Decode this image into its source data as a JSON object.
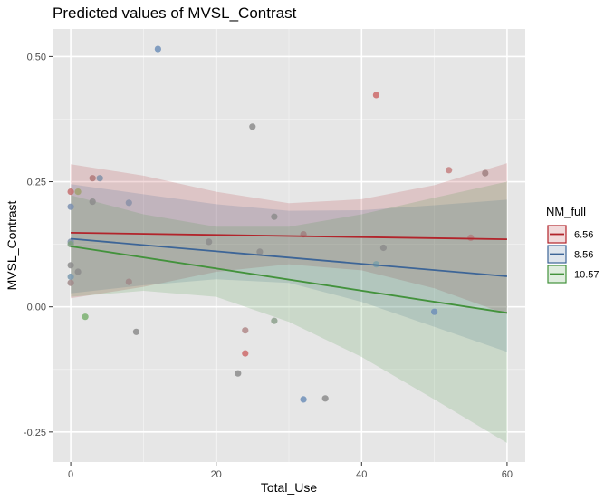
{
  "chart_data": {
    "type": "scatter",
    "title": "Predicted values of MVSL_Contrast",
    "xlabel": "Total_Use",
    "ylabel": "MVSL_Contrast",
    "xlim": [
      -2.5,
      62.5
    ],
    "ylim": [
      -0.31,
      0.555
    ],
    "x_ticks": [
      0,
      20,
      40,
      60
    ],
    "x_tick_labels": [
      "0",
      "20",
      "40",
      "60"
    ],
    "y_ticks": [
      -0.25,
      0,
      0.25,
      0.5
    ],
    "y_tick_labels": [
      "-0.25",
      "0.00",
      "0.25",
      "0.50"
    ],
    "grid": true,
    "legend": {
      "title": "NM_full",
      "position": "right",
      "entries": [
        "6.56",
        "8.56",
        "10.57"
      ]
    },
    "series": [
      {
        "name": "6.56",
        "color": "#b2242b",
        "line": [
          [
            0,
            0.148
          ],
          [
            60,
            0.135
          ]
        ],
        "band": [
          [
            0,
            0.285
          ],
          [
            10,
            0.262
          ],
          [
            20,
            0.23
          ],
          [
            30,
            0.207
          ],
          [
            40,
            0.215
          ],
          [
            50,
            0.243
          ],
          [
            60,
            0.287
          ]
        ],
        "band_low": [
          [
            0,
            0.017
          ],
          [
            10,
            0.04
          ],
          [
            20,
            0.07
          ],
          [
            30,
            0.085
          ],
          [
            40,
            0.073
          ],
          [
            50,
            0.037
          ],
          [
            60,
            -0.015
          ]
        ]
      },
      {
        "name": "8.56",
        "color": "#3d6597",
        "line": [
          [
            0,
            0.136
          ],
          [
            60,
            0.061
          ]
        ],
        "band": [
          [
            0,
            0.245
          ],
          [
            10,
            0.225
          ],
          [
            20,
            0.205
          ],
          [
            30,
            0.192
          ],
          [
            40,
            0.193
          ],
          [
            50,
            0.203
          ],
          [
            60,
            0.214
          ]
        ],
        "band_low": [
          [
            0,
            0.027
          ],
          [
            10,
            0.043
          ],
          [
            20,
            0.055
          ],
          [
            30,
            0.048
          ],
          [
            40,
            0.01
          ],
          [
            50,
            -0.04
          ],
          [
            60,
            -0.09
          ]
        ]
      },
      {
        "name": "10.57",
        "color": "#43923c",
        "line": [
          [
            0,
            0.121
          ],
          [
            60,
            -0.012
          ]
        ],
        "band": [
          [
            0,
            0.223
          ],
          [
            10,
            0.185
          ],
          [
            20,
            0.16
          ],
          [
            30,
            0.16
          ],
          [
            40,
            0.185
          ],
          [
            50,
            0.218
          ],
          [
            60,
            0.25
          ]
        ],
        "band_low": [
          [
            0,
            0.02
          ],
          [
            10,
            0.032
          ],
          [
            20,
            0.02
          ],
          [
            30,
            -0.03
          ],
          [
            40,
            -0.1
          ],
          [
            50,
            -0.185
          ],
          [
            60,
            -0.272
          ]
        ]
      }
    ],
    "points": [
      {
        "x": 12,
        "y": 0.515,
        "color": "#6f8fb8"
      },
      {
        "x": 42,
        "y": 0.423,
        "color": "#cc6a6a"
      },
      {
        "x": 25,
        "y": 0.36,
        "color": "#8c8c8c"
      },
      {
        "x": 52,
        "y": 0.273,
        "color": "#c48080"
      },
      {
        "x": 57,
        "y": 0.267,
        "color": "#a08080"
      },
      {
        "x": 3,
        "y": 0.257,
        "color": "#b07878"
      },
      {
        "x": 4,
        "y": 0.257,
        "color": "#8090a8"
      },
      {
        "x": 0,
        "y": 0.23,
        "color": "#c46e6e"
      },
      {
        "x": 1,
        "y": 0.23,
        "color": "#a0a070"
      },
      {
        "x": 3,
        "y": 0.21,
        "color": "#8c8c8c"
      },
      {
        "x": 8,
        "y": 0.208,
        "color": "#8a90a8"
      },
      {
        "x": 0,
        "y": 0.2,
        "color": "#7a8fb0"
      },
      {
        "x": 28,
        "y": 0.18,
        "color": "#8c8c8c"
      },
      {
        "x": 32,
        "y": 0.145,
        "color": "#a08080"
      },
      {
        "x": 55,
        "y": 0.138,
        "color": "#b08080"
      },
      {
        "x": 0,
        "y": 0.13,
        "color": "#8090a8"
      },
      {
        "x": 19,
        "y": 0.13,
        "color": "#8c8c8c"
      },
      {
        "x": 0,
        "y": 0.125,
        "color": "#80a080"
      },
      {
        "x": 43,
        "y": 0.118,
        "color": "#8c8c8c"
      },
      {
        "x": 26,
        "y": 0.11,
        "color": "#8c8c8c"
      },
      {
        "x": 42,
        "y": 0.085,
        "color": "#7aa0a8"
      },
      {
        "x": 0,
        "y": 0.083,
        "color": "#8c8c8c"
      },
      {
        "x": 1,
        "y": 0.07,
        "color": "#8c8c8c"
      },
      {
        "x": 0,
        "y": 0.06,
        "color": "#7a9ab0"
      },
      {
        "x": 0,
        "y": 0.048,
        "color": "#a08888"
      },
      {
        "x": 8,
        "y": 0.05,
        "color": "#a08888"
      },
      {
        "x": 50,
        "y": -0.01,
        "color": "#6f8fb8"
      },
      {
        "x": 2,
        "y": -0.02,
        "color": "#7ab070"
      },
      {
        "x": 28,
        "y": -0.028,
        "color": "#8ca08c"
      },
      {
        "x": 24,
        "y": -0.047,
        "color": "#b08888"
      },
      {
        "x": 9,
        "y": -0.05,
        "color": "#8c8c8c"
      },
      {
        "x": 24,
        "y": -0.093,
        "color": "#cc6a6a"
      },
      {
        "x": 23,
        "y": -0.133,
        "color": "#8c8c8c"
      },
      {
        "x": 32,
        "y": -0.185,
        "color": "#6f8fb8"
      },
      {
        "x": 35,
        "y": -0.183,
        "color": "#8c8c8c"
      }
    ]
  }
}
